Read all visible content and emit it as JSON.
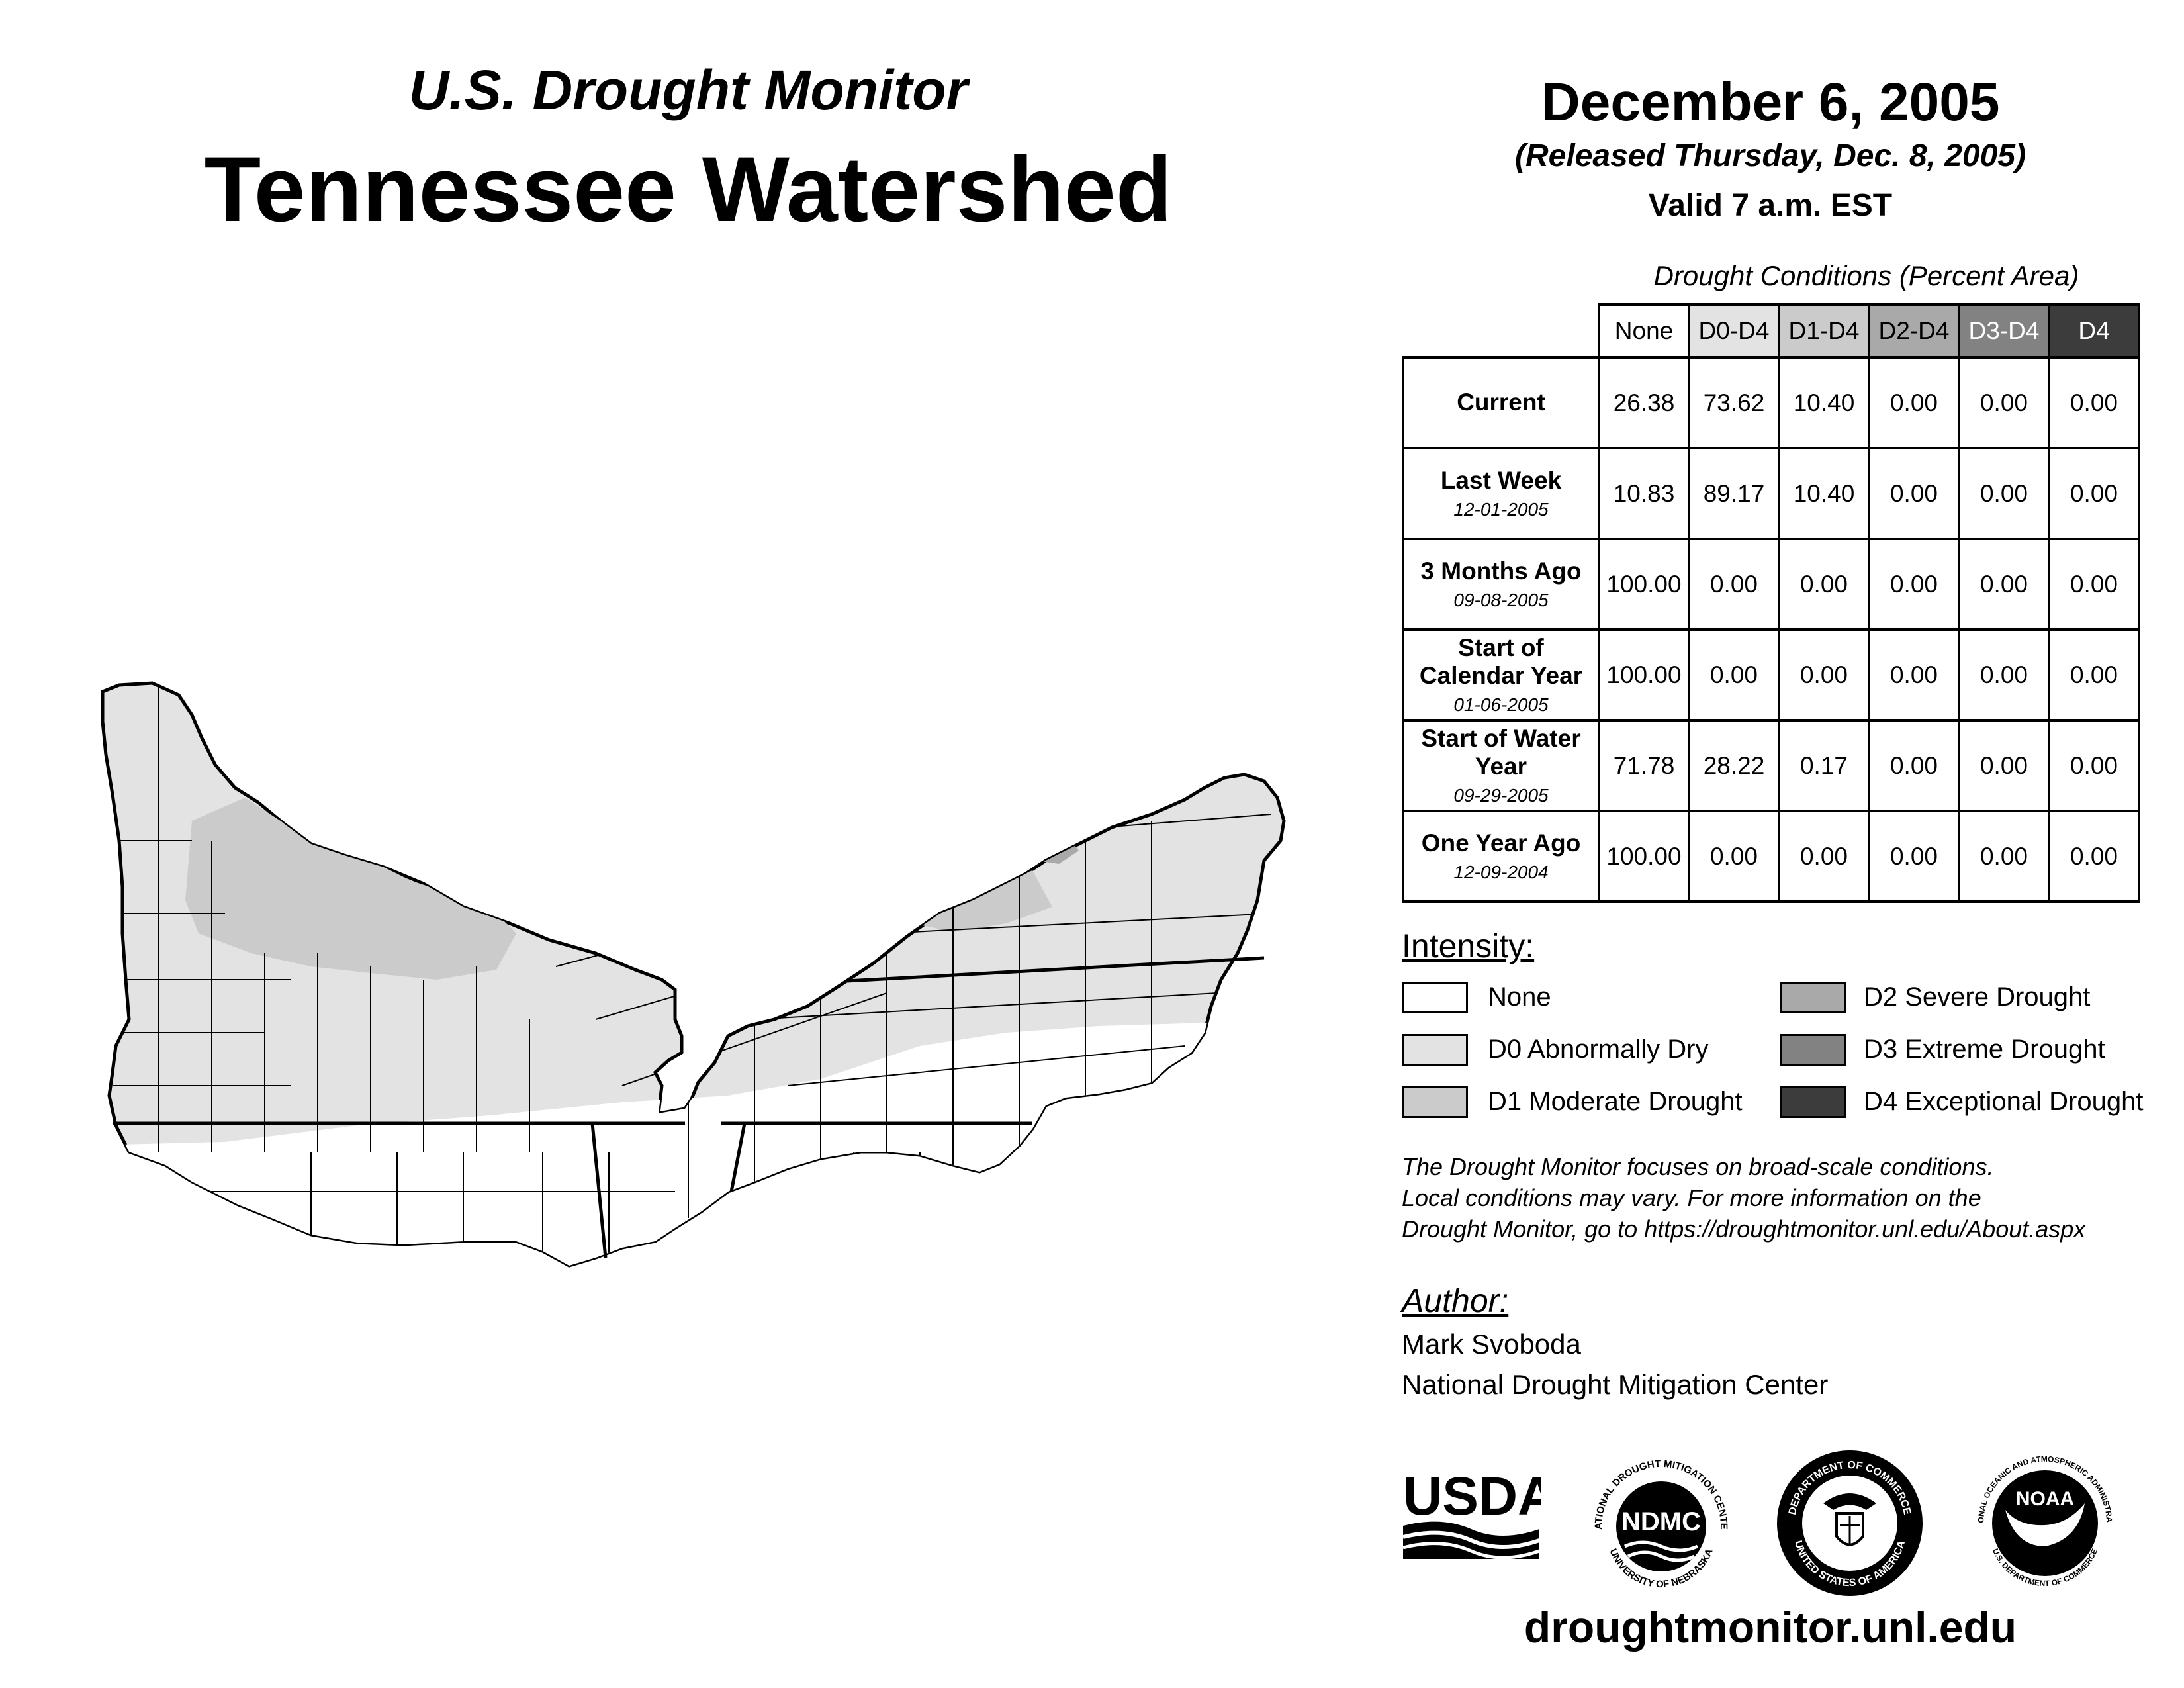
{
  "header": {
    "subtitle": "U.S. Drought Monitor",
    "title": "Tennessee Watershed",
    "date": "December 6, 2005",
    "released": "(Released Thursday, Dec. 8, 2005)",
    "valid": "Valid 7 a.m. EST"
  },
  "table": {
    "caption": "Drought Conditions (Percent Area)",
    "columns": [
      "None",
      "D0-D4",
      "D1-D4",
      "D2-D4",
      "D3-D4",
      "D4"
    ],
    "rows": [
      {
        "label": "Current",
        "date": "",
        "values": [
          "26.38",
          "73.62",
          "10.40",
          "0.00",
          "0.00",
          "0.00"
        ]
      },
      {
        "label": "Last Week",
        "date": "12-01-2005",
        "values": [
          "10.83",
          "89.17",
          "10.40",
          "0.00",
          "0.00",
          "0.00"
        ]
      },
      {
        "label": "3 Months Ago",
        "date": "09-08-2005",
        "values": [
          "100.00",
          "0.00",
          "0.00",
          "0.00",
          "0.00",
          "0.00"
        ]
      },
      {
        "label": "Start of Calendar Year",
        "date": "01-06-2005",
        "values": [
          "100.00",
          "0.00",
          "0.00",
          "0.00",
          "0.00",
          "0.00"
        ]
      },
      {
        "label": "Start of Water Year",
        "date": "09-29-2005",
        "values": [
          "71.78",
          "28.22",
          "0.17",
          "0.00",
          "0.00",
          "0.00"
        ]
      },
      {
        "label": "One Year Ago",
        "date": "12-09-2004",
        "values": [
          "100.00",
          "0.00",
          "0.00",
          "0.00",
          "0.00",
          "0.00"
        ]
      }
    ]
  },
  "legend": {
    "heading": "Intensity:",
    "items": [
      {
        "label": "None",
        "color": "#ffffff"
      },
      {
        "label": "D0 Abnormally Dry",
        "color": "#e3e3e3"
      },
      {
        "label": "D1 Moderate Drought",
        "color": "#cbcbcb"
      },
      {
        "label": "D2 Severe Drought",
        "color": "#a9a9a9"
      },
      {
        "label": "D3 Extreme Drought",
        "color": "#828282"
      },
      {
        "label": "D4 Exceptional Drought",
        "color": "#3c3c3c"
      }
    ]
  },
  "note": {
    "line1": "The Drought Monitor focuses on broad-scale conditions.",
    "line2": "Local conditions may vary. For more information on the",
    "line3": "Drought Monitor, go to https://droughtmonitor.unl.edu/About.aspx"
  },
  "author": {
    "heading": "Author:",
    "name": "Mark Svoboda",
    "org": "National Drought Mitigation Center"
  },
  "logos": {
    "usda": "USDA",
    "ndmc": "NDMC",
    "ndmc_ring_top": "NATIONAL DROUGHT MITIGATION CENTER",
    "ndmc_ring_bottom": "UNIVERSITY OF NEBRASKA",
    "commerce_ring_top": "DEPARTMENT OF COMMERCE",
    "commerce_ring_bottom": "UNITED STATES OF AMERICA",
    "noaa": "NOAA",
    "noaa_ring_top": "NATIONAL OCEANIC AND ATMOSPHERIC ADMINISTRATION",
    "noaa_ring_bottom": "U.S. DEPARTMENT OF COMMERCE"
  },
  "website": "droughtmonitor.unl.edu"
}
